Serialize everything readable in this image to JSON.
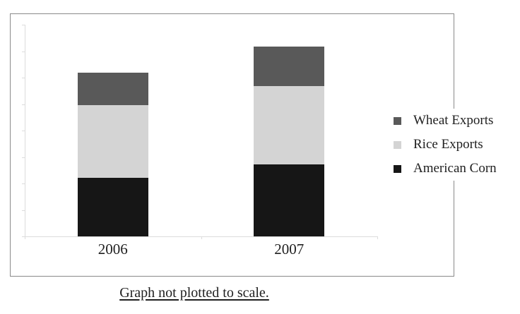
{
  "figure": {
    "caption": "Graph not plotted to scale."
  },
  "colors": {
    "wheat_exports": "#595959",
    "rice_exports": "#d4d4d4",
    "american_corn": "#161616",
    "frame_border": "#8a8a8a",
    "axis_line": "#dcdcdc",
    "text": "#1f1f1f",
    "background": "#ffffff"
  },
  "chart_data": {
    "type": "bar",
    "stacked": true,
    "title": "",
    "xlabel": "",
    "ylabel": "",
    "categories": [
      "2006",
      "2007"
    ],
    "series": [
      {
        "name": "American Corn",
        "color": "#161616",
        "values": [
          83,
          102
        ]
      },
      {
        "name": "Rice Exports",
        "color": "#d4d4d4",
        "values": [
          103,
          111
        ]
      },
      {
        "name": "Wheat Exports",
        "color": "#595959",
        "values": [
          46,
          56
        ]
      }
    ],
    "series_order_note": "series listed bottom-to-top of the stack",
    "value_unit": "relative height units; chart shows no numeric axis labels (not plotted to scale)",
    "totals": [
      232,
      269
    ],
    "legend": [
      "Wheat Exports",
      "Rice Exports",
      "American Corn"
    ],
    "legend_position": "right",
    "grid": false,
    "y_axis": {
      "tick_count": 9,
      "labels": []
    },
    "x_axis": {
      "labels": [
        "2006",
        "2007"
      ],
      "tick_count": 3
    }
  }
}
